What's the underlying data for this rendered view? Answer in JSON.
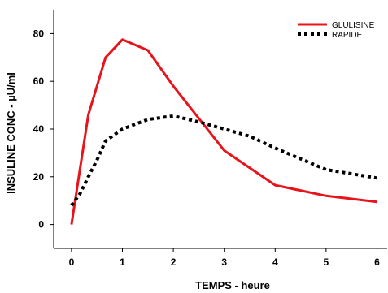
{
  "chart_data": {
    "type": "line",
    "xlabel": "TEMPS - heure",
    "ylabel": "INSULINE CONC - µU/ml",
    "xlim": [
      -0.35,
      6.2
    ],
    "ylim": [
      -10,
      90
    ],
    "xticks": [
      0,
      1,
      2,
      3,
      4,
      5,
      6
    ],
    "yticks": [
      0,
      20,
      40,
      60,
      80
    ],
    "grid": false,
    "legend_position": "top-right",
    "series": [
      {
        "name": "GLULISINE",
        "style": "solid",
        "color": "#e8141c",
        "x": [
          0,
          0.33,
          0.67,
          1.0,
          1.5,
          2.0,
          3.0,
          4.0,
          5.0,
          6.0
        ],
        "y": [
          0,
          46,
          70,
          77.5,
          73,
          58,
          31,
          16.5,
          12,
          9.5
        ]
      },
      {
        "name": "RAPIDE",
        "style": "dotted",
        "color": "#000000",
        "x": [
          0,
          0.17,
          0.33,
          0.5,
          0.67,
          1.0,
          1.5,
          2.0,
          2.5,
          3.0,
          3.5,
          4.0,
          5.0,
          6.0
        ],
        "y": [
          8,
          13,
          20,
          27,
          35,
          40,
          44,
          45.5,
          43,
          40,
          37,
          32,
          23,
          19.5
        ]
      }
    ]
  }
}
